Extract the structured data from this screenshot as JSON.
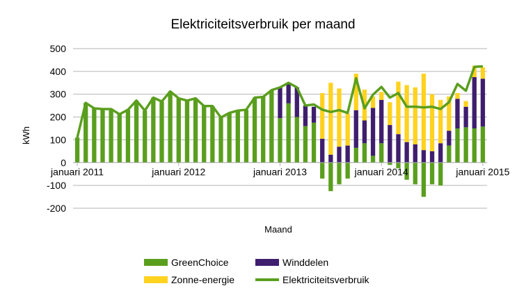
{
  "chart_data": {
    "type": "bar",
    "title": "Elektriciteitsverbruik per maand",
    "xlabel": "Maand",
    "ylabel": "kWh",
    "ylim": [
      -200,
      500
    ],
    "yticks": [
      500,
      400,
      300,
      200,
      100,
      0,
      -100,
      -200
    ],
    "ytick_labels": [
      "500",
      "400",
      "300",
      "200",
      "100",
      "0",
      "-100",
      "-200"
    ],
    "grid": "horizontal",
    "legend_position": "bottom",
    "x": [
      "2011-01",
      "2011-02",
      "2011-03",
      "2011-04",
      "2011-05",
      "2011-06",
      "2011-07",
      "2011-08",
      "2011-09",
      "2011-10",
      "2011-11",
      "2011-12",
      "2012-01",
      "2012-02",
      "2012-03",
      "2012-04",
      "2012-05",
      "2012-06",
      "2012-07",
      "2012-08",
      "2012-09",
      "2012-10",
      "2012-11",
      "2012-12",
      "2013-01",
      "2013-02",
      "2013-03",
      "2013-04",
      "2013-05",
      "2013-06",
      "2013-07",
      "2013-08",
      "2013-09",
      "2013-10",
      "2013-11",
      "2013-12",
      "2014-01",
      "2014-02",
      "2014-03",
      "2014-04",
      "2014-05",
      "2014-06",
      "2014-07",
      "2014-08",
      "2014-09",
      "2014-10",
      "2014-11",
      "2014-12",
      "2015-01"
    ],
    "x_tick_labels": [
      {
        "label": "januari 2011",
        "at": "2011-01"
      },
      {
        "label": "januari 2012",
        "at": "2012-01"
      },
      {
        "label": "januari 2013",
        "at": "2013-01"
      },
      {
        "label": "januari 2014",
        "at": "2014-01"
      },
      {
        "label": "januari 2015",
        "at": "2015-01"
      }
    ],
    "series": [
      {
        "name": "GreenChoice",
        "color": "#5a9e1e",
        "values": [
          110,
          262,
          238,
          235,
          235,
          212,
          232,
          272,
          228,
          285,
          268,
          312,
          282,
          272,
          282,
          248,
          248,
          198,
          218,
          228,
          232,
          285,
          288,
          318,
          195,
          260,
          200,
          160,
          175,
          -70,
          -125,
          -95,
          -70,
          65,
          85,
          30,
          85,
          -10,
          -25,
          -75,
          -95,
          -150,
          -95,
          -100,
          75,
          150,
          155,
          150,
          158
        ]
      },
      {
        "name": "Winddelen",
        "color": "#3f1e6e",
        "values": [
          0,
          0,
          0,
          0,
          0,
          0,
          0,
          0,
          0,
          0,
          0,
          0,
          0,
          0,
          0,
          0,
          0,
          0,
          0,
          0,
          0,
          0,
          0,
          0,
          135,
          90,
          130,
          90,
          70,
          105,
          35,
          70,
          75,
          165,
          100,
          210,
          190,
          165,
          125,
          90,
          80,
          55,
          50,
          85,
          65,
          130,
          90,
          225,
          210
        ]
      },
      {
        "name": "Zonne-energie",
        "color": "#ffd21f",
        "values": [
          0,
          0,
          0,
          0,
          0,
          0,
          0,
          0,
          0,
          0,
          0,
          0,
          0,
          0,
          0,
          0,
          0,
          0,
          0,
          0,
          0,
          0,
          0,
          0,
          0,
          0,
          0,
          0,
          0,
          200,
          315,
          255,
          140,
          160,
          135,
          50,
          35,
          100,
          230,
          250,
          250,
          335,
          250,
          190,
          150,
          25,
          25,
          50,
          50
        ]
      },
      {
        "name": "Elektriciteitsverbruik",
        "color": "#5a9e1e",
        "values": [
          110,
          262,
          238,
          235,
          235,
          212,
          232,
          272,
          228,
          285,
          268,
          312,
          282,
          272,
          282,
          248,
          248,
          198,
          218,
          228,
          232,
          285,
          288,
          318,
          330,
          350,
          330,
          250,
          255,
          232,
          222,
          230,
          218,
          370,
          238,
          298,
          332,
          285,
          305,
          245,
          245,
          242,
          245,
          235,
          265,
          345,
          315,
          420,
          422
        ]
      }
    ]
  }
}
